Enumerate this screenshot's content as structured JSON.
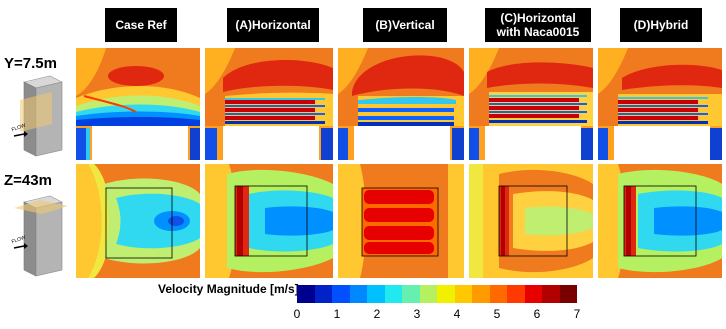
{
  "headers": [
    {
      "label": "Case Ref"
    },
    {
      "label": "(A)Horizontal"
    },
    {
      "label": "(B)Vertical"
    },
    {
      "label": "(C)Horizontal\nwith Naca0015"
    },
    {
      "label": "(D)Hybrid"
    }
  ],
  "rows": [
    {
      "label": "Y=7.5m"
    },
    {
      "label": "Z=43m"
    }
  ],
  "building_label": "FLOW",
  "colorbar": {
    "title": "Velocity Magnitude [m/s]",
    "ticks": [
      "0",
      "1",
      "2",
      "3",
      "4",
      "5",
      "6",
      "7"
    ],
    "colors": [
      "#00008f",
      "#0022c8",
      "#0050ff",
      "#0088ff",
      "#00c0ff",
      "#22e8f0",
      "#66f0b0",
      "#b4f060",
      "#f0f000",
      "#ffc800",
      "#ff9a00",
      "#ff6a00",
      "#ff3a00",
      "#e60000",
      "#b20000",
      "#7a0000"
    ]
  }
}
